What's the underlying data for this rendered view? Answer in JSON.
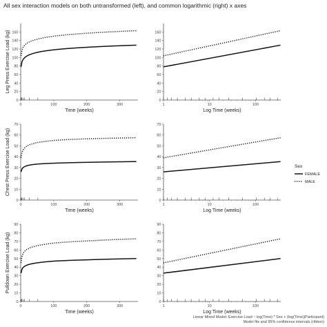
{
  "title": "All sex interaction models on both untransformed (left), and common logarithmic (right) x axes",
  "caption": [
    "Linear Mixed Model: Exercise Load ~ log(Time) * Sex + (log(Time)|Participant)",
    "Model fits and 95% confidence intervals (ribbon)"
  ],
  "legend": {
    "title": "Sex",
    "items": [
      {
        "label": "FEMALE",
        "style": "solid"
      },
      {
        "label": "MALE",
        "style": "dotted"
      }
    ]
  },
  "colors": {
    "line": "#111111",
    "axis": "#555555",
    "background": "#ffffff"
  },
  "chart_data": [
    {
      "type": "line",
      "row": 1,
      "xscale": "linear",
      "xlabel": "Time (weeks)",
      "ylabel": "Leg Press Exercise Load (kg)",
      "xlim": [
        0,
        355
      ],
      "ylim": [
        0,
        180
      ],
      "xticks": [
        0,
        100,
        200,
        300
      ],
      "yticks": [
        0,
        20,
        40,
        60,
        80,
        100,
        120,
        140,
        160
      ],
      "series": [
        {
          "name": "FEMALE",
          "x": [
            1,
            2,
            5,
            10,
            20,
            50,
            100,
            200,
            350
          ],
          "y": [
            78,
            84,
            92,
            98,
            104,
            112,
            118,
            124,
            129
          ]
        },
        {
          "name": "MALE",
          "x": [
            1,
            2,
            5,
            10,
            20,
            50,
            100,
            200,
            350
          ],
          "y": [
            104,
            111,
            120,
            127,
            134,
            143,
            150,
            157,
            163
          ]
        }
      ]
    },
    {
      "type": "line",
      "row": 1,
      "xscale": "log",
      "xlabel": "Log Time (weeks)",
      "ylabel": "",
      "xlim": [
        1,
        355
      ],
      "ylim": [
        0,
        180
      ],
      "xticks": [
        1,
        10,
        100
      ],
      "xticklabels": [
        "1",
        "10",
        "100"
      ],
      "yticks": [
        0,
        20,
        40,
        60,
        80,
        100,
        120,
        140,
        160
      ],
      "series": [
        {
          "name": "FEMALE",
          "x": [
            1,
            350
          ],
          "y": [
            78,
            129
          ]
        },
        {
          "name": "MALE",
          "x": [
            1,
            350
          ],
          "y": [
            104,
            163
          ]
        }
      ]
    },
    {
      "type": "line",
      "row": 2,
      "xscale": "linear",
      "xlabel": "Time (weeks)",
      "ylabel": "Chest Press Exercise Load (kg)",
      "xlim": [
        0,
        355
      ],
      "ylim": [
        0,
        70
      ],
      "xticks": [
        0,
        100,
        200,
        300
      ],
      "yticks": [
        0,
        10,
        20,
        30,
        40,
        50,
        60,
        70
      ],
      "series": [
        {
          "name": "FEMALE",
          "x": [
            1,
            2,
            5,
            10,
            20,
            50,
            100,
            200,
            350
          ],
          "y": [
            26,
            27.5,
            29.3,
            30.5,
            31.8,
            33.2,
            34,
            34.8,
            35.5
          ]
        },
        {
          "name": "MALE",
          "x": [
            1,
            2,
            5,
            10,
            20,
            50,
            100,
            200,
            350
          ],
          "y": [
            39,
            41.5,
            45,
            47.5,
            50,
            53,
            55,
            56.5,
            57.5
          ]
        }
      ]
    },
    {
      "type": "line",
      "row": 2,
      "xscale": "log",
      "xlabel": "Log Time (weeks)",
      "ylabel": "",
      "xlim": [
        1,
        355
      ],
      "ylim": [
        0,
        70
      ],
      "xticks": [
        1,
        10,
        100
      ],
      "xticklabels": [
        "1",
        "10",
        "100"
      ],
      "yticks": [
        0,
        10,
        20,
        30,
        40,
        50,
        60,
        70
      ],
      "series": [
        {
          "name": "FEMALE",
          "x": [
            1,
            350
          ],
          "y": [
            26,
            35.5
          ]
        },
        {
          "name": "MALE",
          "x": [
            1,
            350
          ],
          "y": [
            39,
            57.5
          ]
        }
      ]
    },
    {
      "type": "line",
      "row": 3,
      "xscale": "linear",
      "xlabel": "Time (weeks)",
      "ylabel": "Pulldown Exercise Load (kg)",
      "xlim": [
        0,
        355
      ],
      "ylim": [
        0,
        90
      ],
      "xticks": [
        0,
        100,
        200,
        300
      ],
      "yticks": [
        0,
        10,
        20,
        30,
        40,
        50,
        60,
        70,
        80,
        90
      ],
      "series": [
        {
          "name": "FEMALE",
          "x": [
            1,
            2,
            5,
            10,
            20,
            50,
            100,
            200,
            350
          ],
          "y": [
            33,
            35.5,
            38.5,
            40.5,
            42.5,
            45,
            47,
            48.5,
            50
          ]
        },
        {
          "name": "MALE",
          "x": [
            1,
            2,
            5,
            10,
            20,
            50,
            100,
            200,
            350
          ],
          "y": [
            45,
            49,
            54,
            57.5,
            61,
            65,
            68,
            70.5,
            73
          ]
        }
      ]
    },
    {
      "type": "line",
      "row": 3,
      "xscale": "log",
      "xlabel": "Log Time (weeks)",
      "ylabel": "",
      "xlim": [
        1,
        355
      ],
      "ylim": [
        0,
        90
      ],
      "xticks": [
        1,
        10,
        100
      ],
      "xticklabels": [
        "1",
        "10",
        "100"
      ],
      "yticks": [
        0,
        10,
        20,
        30,
        40,
        50,
        60,
        70,
        80,
        90
      ],
      "series": [
        {
          "name": "FEMALE",
          "x": [
            1,
            350
          ],
          "y": [
            33,
            50
          ]
        },
        {
          "name": "MALE",
          "x": [
            1,
            350
          ],
          "y": [
            45,
            73
          ]
        }
      ]
    }
  ]
}
